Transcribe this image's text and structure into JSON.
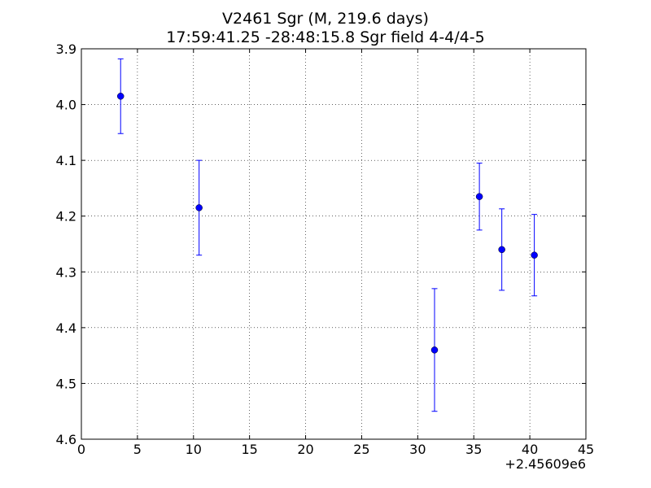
{
  "chart_data": {
    "type": "scatter",
    "title": "V2461 Sgr (M, 219.6 days)",
    "subtitle": "17:59:41.25 -28:48:15.8 Sgr field 4-4/4-5",
    "xlabel": "",
    "ylabel": "",
    "x_offset_label": "+2.45609e6",
    "xlim": [
      0,
      45
    ],
    "ylim": [
      3.9,
      4.6
    ],
    "y_inverted": true,
    "grid": true,
    "x_ticks": [
      "0",
      "5",
      "10",
      "15",
      "20",
      "25",
      "30",
      "35",
      "40",
      "45"
    ],
    "y_ticks": [
      "3.9",
      "4.0",
      "4.1",
      "4.2",
      "4.3",
      "4.4",
      "4.5",
      "4.6"
    ],
    "series": [
      {
        "color": "#0000ff",
        "marker": "circle",
        "error_bars": true,
        "points": [
          {
            "x": 3.5,
            "y": 3.985,
            "err": 0.067
          },
          {
            "x": 10.5,
            "y": 4.185,
            "err": 0.085
          },
          {
            "x": 31.5,
            "y": 4.44,
            "err": 0.11
          },
          {
            "x": 35.5,
            "y": 4.165,
            "err": 0.06
          },
          {
            "x": 37.5,
            "y": 4.26,
            "err": 0.073
          },
          {
            "x": 40.4,
            "y": 4.27,
            "err": 0.073
          }
        ]
      }
    ]
  }
}
